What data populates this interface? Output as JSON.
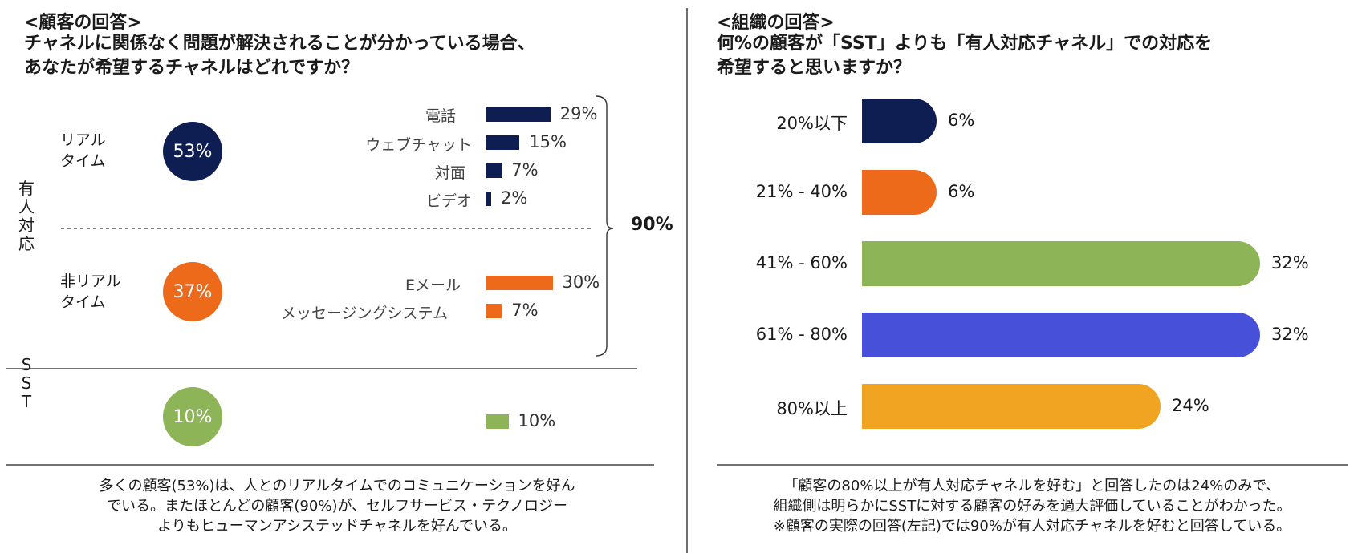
{
  "left": {
    "subtitle": "<顧客の回答>",
    "question": [
      "チャネルに関係なく問題が解決されることが分かっている場合、",
      "あなたが希望するチャネルはどれですか？"
    ],
    "side_label_human": [
      "有",
      "人",
      "対",
      "応"
    ],
    "side_label_sst": [
      "S",
      "S",
      "T"
    ],
    "realtime": {
      "label": [
        "リアル",
        "タイム"
      ],
      "pct": "53%",
      "color": "#0f1e52",
      "channels": [
        {
          "name": "電話",
          "value": 29,
          "label": "29%"
        },
        {
          "name": "ウェブチャット",
          "value": 15,
          "label": "15%"
        },
        {
          "name": "対面",
          "value": 7,
          "label": "7%"
        },
        {
          "name": "ビデオ",
          "value": 2,
          "label": "2%"
        }
      ]
    },
    "nonrealtime": {
      "label": [
        "非リアル",
        "タイム"
      ],
      "pct": "37%",
      "color": "#ec6a1a",
      "channels": [
        {
          "name": "Eメール",
          "value": 30,
          "label": "30%"
        },
        {
          "name": "メッセージングシステム",
          "value": 7,
          "label": "7%"
        }
      ]
    },
    "sst": {
      "pct": "10%",
      "color": "#8db457",
      "value": 10,
      "label": "10%"
    },
    "bracket_total": "90%",
    "note": [
      "多くの顧客(53%)は、人とのリアルタイムでのコミュニケーションを好ん",
      "でいる。またほとんどの顧客(90%)が、セルフサービス・テクノロジー",
      "よりもヒューマンアシステッドチャネルを好んでいる。"
    ]
  },
  "right": {
    "subtitle": "<組織の回答>",
    "question": [
      "何%の顧客が「SST」よりも「有人対応チャネル」での対応を",
      "希望すると思いますか？"
    ],
    "note": [
      "「顧客の80%以上が有人対応チャネルを好む」と回答したのは24%のみで、",
      "組織側は明らかにSSTに対する顧客の好みを過大評価していることがわかった。",
      "※顧客の実際の回答(左記)では90%が有人対応チャネルを好むと回答している。"
    ]
  },
  "chart_data": [
    {
      "type": "bar",
      "title": "チャネルに関係なく問題が解決されることが分かっている場合、あなたが希望するチャネルはどれですか？",
      "categories": [
        "電話",
        "ウェブチャット",
        "対面",
        "ビデオ",
        "Eメール",
        "メッセージングシステム",
        "SST"
      ],
      "values": [
        29,
        15,
        7,
        2,
        30,
        7,
        10
      ],
      "groups": [
        {
          "name": "有人対応 リアルタイム",
          "total": 53
        },
        {
          "name": "有人対応 非リアルタイム",
          "total": 37
        },
        {
          "name": "SST",
          "total": 10
        }
      ],
      "human_total": 90,
      "unit": "%"
    },
    {
      "type": "bar",
      "title": "何%の顧客が「SST」よりも「有人対応チャネル」での対応を希望すると思いますか？",
      "categories": [
        "20%以下",
        "21% - 40%",
        "41% - 60%",
        "61% - 80%",
        "80%以上"
      ],
      "values": [
        6,
        6,
        32,
        32,
        24
      ],
      "labels": [
        "6%",
        "6%",
        "32%",
        "32%",
        "24%"
      ],
      "colors": [
        "#0f1e52",
        "#ec6a1a",
        "#8db457",
        "#4650d8",
        "#f0a422"
      ],
      "unit": "%"
    }
  ]
}
